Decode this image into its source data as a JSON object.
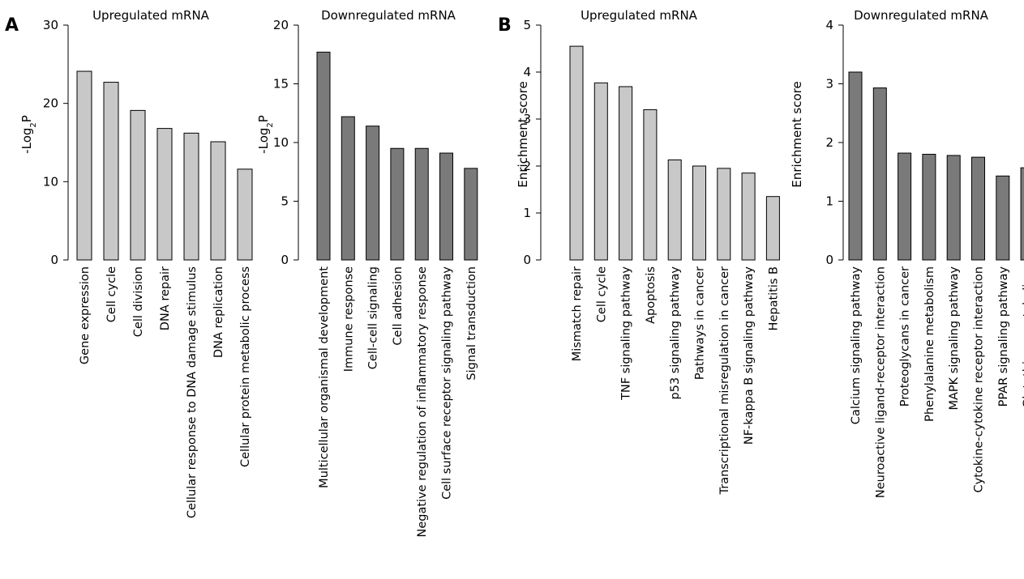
{
  "panel_labels": [
    "A",
    "B"
  ],
  "chart_data": [
    {
      "type": "bar",
      "panel": "A",
      "title": "Upregulated mRNA",
      "ylabel": "-Log2P",
      "ylim": [
        0,
        30
      ],
      "yticks": [
        0,
        10,
        20,
        30
      ],
      "bar_color": "#c8c8c8",
      "categories": [
        "Gene expression",
        "Cell cycle",
        "Cell division",
        "DNA repair",
        "Cellular response to DNA damage stimulus",
        "DNA replication",
        "Cellular protein metabolic process"
      ],
      "values": [
        24.1,
        22.7,
        19.1,
        16.8,
        16.2,
        15.1,
        11.6
      ]
    },
    {
      "type": "bar",
      "panel": "A",
      "title": "Downregulated mRNA",
      "ylabel": "-Log2P",
      "ylim": [
        0,
        20
      ],
      "yticks": [
        0,
        5,
        10,
        15,
        20
      ],
      "bar_color": "#7a7a7a",
      "categories": [
        "Multicellular organismal development",
        "Immune response",
        "Cell-cell signaling",
        "Cell adhesion",
        "Negative regulation of inflammatory response",
        "Cell surface receptor signaling pathway",
        "Signal transduction"
      ],
      "values": [
        17.7,
        12.2,
        11.4,
        9.5,
        9.5,
        9.1,
        7.8
      ]
    },
    {
      "type": "bar",
      "panel": "B",
      "title": "Upregulated mRNA",
      "ylabel": "Enrichment score",
      "ylim": [
        0,
        5
      ],
      "yticks": [
        0,
        1,
        2,
        3,
        4,
        5
      ],
      "bar_color": "#c8c8c8",
      "categories": [
        "Mismatch repair",
        "Cell cycle",
        "TNF signaling pathway",
        "Apoptosis",
        "p53  signaling pathway",
        "Pathways in cancer",
        "Transcriptional misregulation in cancer",
        "NF-kappa B signaling pathway",
        "Hepatitis B"
      ],
      "values": [
        4.55,
        3.77,
        3.69,
        3.2,
        2.13,
        2.0,
        1.95,
        1.85,
        1.35
      ]
    },
    {
      "type": "bar",
      "panel": "B",
      "title": "Downregulated mRNA",
      "ylabel": "Enrichment score",
      "ylim": [
        0,
        4
      ],
      "yticks": [
        0,
        1,
        2,
        3,
        4
      ],
      "bar_color": "#7a7a7a",
      "categories": [
        "Calcium signaling pathway",
        "Neuroactive ligand-receptor interaction",
        "Proteoglycans in cancer",
        "Phenylalanine metabolism",
        "MAPK signaling pathway",
        "Cytokine-cytokine receptor interaction",
        "PPAR signaling pathway",
        "Glutathione metabolism"
      ],
      "values": [
        3.2,
        2.93,
        1.82,
        1.8,
        1.78,
        1.75,
        1.43,
        1.57
      ]
    }
  ]
}
